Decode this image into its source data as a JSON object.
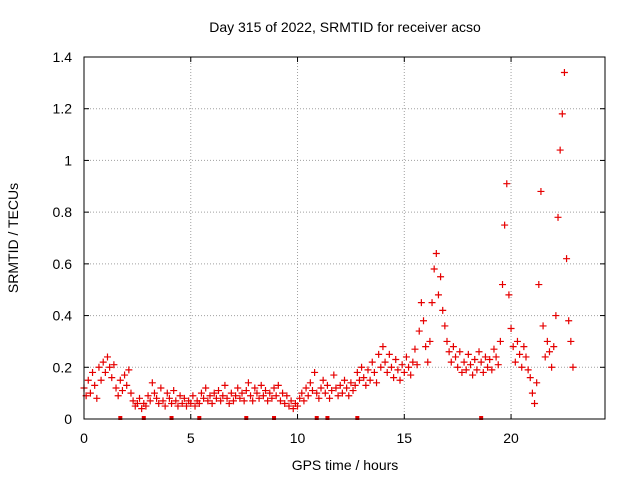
{
  "chart_data": {
    "type": "scatter",
    "title": "Day 315 of 2022, SRMTID for receiver acso",
    "xlabel": "GPS time / hours",
    "ylabel": "SRMTID / TECUs",
    "xlim": [
      0,
      24.4
    ],
    "ylim": [
      0,
      1.4
    ],
    "x_ticks": [
      0,
      5,
      10,
      15,
      20
    ],
    "y_ticks": [
      0,
      0.2,
      0.4,
      0.6,
      0.8,
      1.0,
      1.2,
      1.4
    ],
    "x_tick_labels": [
      "0",
      "5",
      "10",
      "15",
      "20"
    ],
    "y_tick_labels": [
      "0",
      "0.2",
      "0.4",
      "0.6",
      "0.8",
      "1",
      "1.2",
      "1.4"
    ],
    "grid": true,
    "marker": "+",
    "color": "#e60000",
    "series": [
      {
        "name": "SRMTID",
        "points": [
          [
            0.0,
            0.12
          ],
          [
            0.1,
            0.09
          ],
          [
            0.2,
            0.15
          ],
          [
            0.3,
            0.1
          ],
          [
            0.4,
            0.18
          ],
          [
            0.5,
            0.13
          ],
          [
            0.6,
            0.08
          ],
          [
            0.7,
            0.2
          ],
          [
            0.8,
            0.15
          ],
          [
            0.9,
            0.22
          ],
          [
            1.0,
            0.18
          ],
          [
            1.1,
            0.24
          ],
          [
            1.2,
            0.2
          ],
          [
            1.3,
            0.16
          ],
          [
            1.4,
            0.21
          ],
          [
            1.5,
            0.12
          ],
          [
            1.6,
            0.09
          ],
          [
            1.7,
            0.15
          ],
          [
            1.8,
            0.11
          ],
          [
            1.9,
            0.17
          ],
          [
            2.0,
            0.13
          ],
          [
            2.1,
            0.19
          ],
          [
            2.2,
            0.1
          ],
          [
            2.3,
            0.07
          ],
          [
            2.4,
            0.05
          ],
          [
            2.5,
            0.06
          ],
          [
            2.6,
            0.08
          ],
          [
            2.7,
            0.04
          ],
          [
            2.8,
            0.06
          ],
          [
            2.9,
            0.05
          ],
          [
            3.0,
            0.09
          ],
          [
            3.1,
            0.07
          ],
          [
            3.2,
            0.14
          ],
          [
            3.3,
            0.1
          ],
          [
            3.4,
            0.08
          ],
          [
            3.5,
            0.06
          ],
          [
            3.6,
            0.12
          ],
          [
            3.7,
            0.07
          ],
          [
            3.8,
            0.05
          ],
          [
            3.9,
            0.1
          ],
          [
            4.0,
            0.08
          ],
          [
            4.1,
            0.06
          ],
          [
            4.2,
            0.11
          ],
          [
            4.3,
            0.07
          ],
          [
            4.4,
            0.05
          ],
          [
            4.5,
            0.09
          ],
          [
            4.6,
            0.06
          ],
          [
            4.7,
            0.08
          ],
          [
            4.8,
            0.05
          ],
          [
            4.9,
            0.07
          ],
          [
            5.0,
            0.06
          ],
          [
            5.1,
            0.09
          ],
          [
            5.2,
            0.05
          ],
          [
            5.3,
            0.07
          ],
          [
            5.4,
            0.06
          ],
          [
            5.5,
            0.1
          ],
          [
            5.6,
            0.08
          ],
          [
            5.7,
            0.12
          ],
          [
            5.8,
            0.07
          ],
          [
            5.9,
            0.09
          ],
          [
            6.0,
            0.06
          ],
          [
            6.1,
            0.1
          ],
          [
            6.2,
            0.08
          ],
          [
            6.3,
            0.11
          ],
          [
            6.4,
            0.07
          ],
          [
            6.5,
            0.09
          ],
          [
            6.6,
            0.13
          ],
          [
            6.7,
            0.08
          ],
          [
            6.8,
            0.06
          ],
          [
            6.9,
            0.1
          ],
          [
            7.0,
            0.07
          ],
          [
            7.1,
            0.09
          ],
          [
            7.2,
            0.12
          ],
          [
            7.3,
            0.08
          ],
          [
            7.4,
            0.1
          ],
          [
            7.5,
            0.07
          ],
          [
            7.6,
            0.11
          ],
          [
            7.7,
            0.14
          ],
          [
            7.8,
            0.09
          ],
          [
            7.9,
            0.07
          ],
          [
            8.0,
            0.12
          ],
          [
            8.1,
            0.1
          ],
          [
            8.2,
            0.08
          ],
          [
            8.3,
            0.13
          ],
          [
            8.4,
            0.09
          ],
          [
            8.5,
            0.11
          ],
          [
            8.6,
            0.07
          ],
          [
            8.7,
            0.1
          ],
          [
            8.8,
            0.08
          ],
          [
            8.9,
            0.12
          ],
          [
            9.0,
            0.09
          ],
          [
            9.1,
            0.13
          ],
          [
            9.2,
            0.07
          ],
          [
            9.3,
            0.1
          ],
          [
            9.4,
            0.06
          ],
          [
            9.5,
            0.09
          ],
          [
            9.6,
            0.05
          ],
          [
            9.7,
            0.07
          ],
          [
            9.8,
            0.04
          ],
          [
            9.9,
            0.06
          ],
          [
            10.0,
            0.05
          ],
          [
            10.1,
            0.08
          ],
          [
            10.2,
            0.1
          ],
          [
            10.3,
            0.07
          ],
          [
            10.4,
            0.12
          ],
          [
            10.5,
            0.09
          ],
          [
            10.6,
            0.14
          ],
          [
            10.7,
            0.11
          ],
          [
            10.8,
            0.18
          ],
          [
            10.9,
            0.1
          ],
          [
            11.0,
            0.08
          ],
          [
            11.1,
            0.12
          ],
          [
            11.2,
            0.15
          ],
          [
            11.3,
            0.1
          ],
          [
            11.4,
            0.13
          ],
          [
            11.5,
            0.08
          ],
          [
            11.6,
            0.11
          ],
          [
            11.7,
            0.17
          ],
          [
            11.8,
            0.12
          ],
          [
            11.9,
            0.09
          ],
          [
            12.0,
            0.13
          ],
          [
            12.1,
            0.1
          ],
          [
            12.2,
            0.15
          ],
          [
            12.3,
            0.12
          ],
          [
            12.4,
            0.09
          ],
          [
            12.5,
            0.14
          ],
          [
            12.6,
            0.11
          ],
          [
            12.7,
            0.13
          ],
          [
            12.8,
            0.18
          ],
          [
            12.9,
            0.15
          ],
          [
            13.0,
            0.2
          ],
          [
            13.1,
            0.16
          ],
          [
            13.2,
            0.13
          ],
          [
            13.3,
            0.19
          ],
          [
            13.4,
            0.15
          ],
          [
            13.5,
            0.22
          ],
          [
            13.6,
            0.18
          ],
          [
            13.7,
            0.14
          ],
          [
            13.8,
            0.25
          ],
          [
            13.9,
            0.2
          ],
          [
            14.0,
            0.28
          ],
          [
            14.1,
            0.22
          ],
          [
            14.2,
            0.18
          ],
          [
            14.3,
            0.25
          ],
          [
            14.4,
            0.2
          ],
          [
            14.5,
            0.16
          ],
          [
            14.6,
            0.23
          ],
          [
            14.7,
            0.19
          ],
          [
            14.8,
            0.15
          ],
          [
            14.9,
            0.21
          ],
          [
            15.0,
            0.18
          ],
          [
            15.1,
            0.24
          ],
          [
            15.2,
            0.2
          ],
          [
            15.3,
            0.17
          ],
          [
            15.4,
            0.22
          ],
          [
            15.5,
            0.27
          ],
          [
            15.6,
            0.21
          ],
          [
            15.7,
            0.34
          ],
          [
            15.8,
            0.45
          ],
          [
            15.9,
            0.38
          ],
          [
            16.0,
            0.28
          ],
          [
            16.1,
            0.22
          ],
          [
            16.2,
            0.3
          ],
          [
            16.3,
            0.45
          ],
          [
            16.4,
            0.58
          ],
          [
            16.5,
            0.64
          ],
          [
            16.6,
            0.48
          ],
          [
            16.7,
            0.55
          ],
          [
            16.8,
            0.42
          ],
          [
            16.9,
            0.36
          ],
          [
            17.0,
            0.3
          ],
          [
            17.1,
            0.26
          ],
          [
            17.2,
            0.22
          ],
          [
            17.3,
            0.28
          ],
          [
            17.4,
            0.24
          ],
          [
            17.5,
            0.2
          ],
          [
            17.6,
            0.26
          ],
          [
            17.7,
            0.18
          ],
          [
            17.8,
            0.22
          ],
          [
            17.9,
            0.19
          ],
          [
            18.0,
            0.25
          ],
          [
            18.1,
            0.21
          ],
          [
            18.2,
            0.17
          ],
          [
            18.3,
            0.23
          ],
          [
            18.4,
            0.19
          ],
          [
            18.5,
            0.26
          ],
          [
            18.6,
            0.22
          ],
          [
            18.7,
            0.18
          ],
          [
            18.8,
            0.24
          ],
          [
            18.9,
            0.2
          ],
          [
            19.0,
            0.23
          ],
          [
            19.1,
            0.19
          ],
          [
            19.2,
            0.27
          ],
          [
            19.3,
            0.24
          ],
          [
            19.4,
            0.21
          ],
          [
            19.5,
            0.3
          ],
          [
            19.6,
            0.52
          ],
          [
            19.7,
            0.75
          ],
          [
            19.8,
            0.91
          ],
          [
            19.9,
            0.48
          ],
          [
            20.0,
            0.35
          ],
          [
            20.1,
            0.28
          ],
          [
            20.2,
            0.22
          ],
          [
            20.3,
            0.3
          ],
          [
            20.4,
            0.25
          ],
          [
            20.5,
            0.2
          ],
          [
            20.6,
            0.28
          ],
          [
            20.7,
            0.24
          ],
          [
            20.8,
            0.19
          ],
          [
            20.9,
            0.16
          ],
          [
            21.0,
            0.1
          ],
          [
            21.1,
            0.06
          ],
          [
            21.2,
            0.14
          ],
          [
            21.3,
            0.52
          ],
          [
            21.4,
            0.88
          ],
          [
            21.5,
            0.36
          ],
          [
            21.6,
            0.24
          ],
          [
            21.7,
            0.3
          ],
          [
            21.8,
            0.26
          ],
          [
            21.9,
            0.2
          ],
          [
            22.0,
            0.28
          ],
          [
            22.1,
            0.4
          ],
          [
            22.2,
            0.78
          ],
          [
            22.3,
            1.04
          ],
          [
            22.4,
            1.18
          ],
          [
            22.5,
            1.34
          ],
          [
            22.6,
            0.62
          ],
          [
            22.7,
            0.38
          ],
          [
            22.8,
            0.3
          ],
          [
            22.9,
            0.2
          ]
        ]
      }
    ],
    "baseline_markers_x": [
      1.7,
      2.8,
      4.1,
      5.4,
      7.6,
      8.9,
      10.9,
      11.4,
      12.8,
      18.6
    ]
  }
}
